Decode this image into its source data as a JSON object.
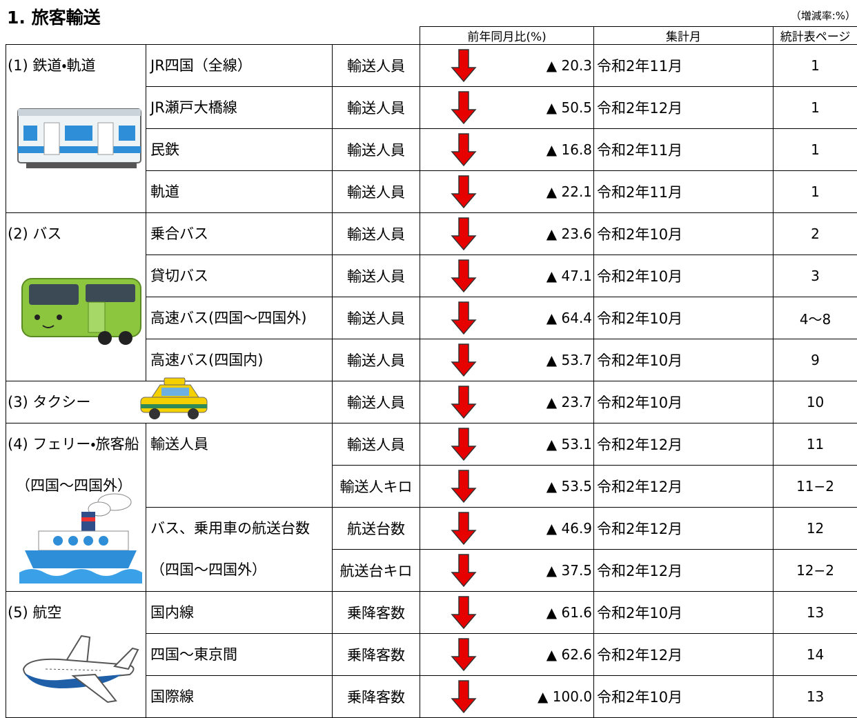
{
  "title": "1. 旅客輸送",
  "unit_note": "（増減率:%）",
  "header": {
    "change": "前年同月比(%)",
    "month": "集計月",
    "page": "統計表ページ"
  },
  "groups": [
    {
      "label": "(1) 鉄道・軌道",
      "items": [
        {
          "label": "JR四国（全線）",
          "rows": [
            {
              "measure": "輸送人員",
              "change": "▲ 20.3",
              "month": "令和2年11月",
              "page": "1"
            }
          ]
        },
        {
          "label": "JR瀬戸大橋線",
          "rows": [
            {
              "measure": "輸送人員",
              "change": "▲ 50.5",
              "month": "令和2年12月",
              "page": "1"
            }
          ]
        },
        {
          "label": "民鉄",
          "rows": [
            {
              "measure": "輸送人員",
              "change": "▲ 16.8",
              "month": "令和2年11月",
              "page": "1"
            }
          ]
        },
        {
          "label": "軌道",
          "rows": [
            {
              "measure": "輸送人員",
              "change": "▲ 22.1",
              "month": "令和2年11月",
              "page": "1"
            }
          ]
        }
      ]
    },
    {
      "label": "(2) バス",
      "items": [
        {
          "label": "乗合バス",
          "rows": [
            {
              "measure": "輸送人員",
              "change": "▲ 23.6",
              "month": "令和2年10月",
              "page": "2"
            }
          ]
        },
        {
          "label": "貸切バス",
          "rows": [
            {
              "measure": "輸送人員",
              "change": "▲ 47.1",
              "month": "令和2年10月",
              "page": "3"
            }
          ]
        },
        {
          "label": "高速バス(四国～四国外)",
          "rows": [
            {
              "measure": "輸送人員",
              "change": "▲ 64.4",
              "month": "令和2年10月",
              "page": "4～8"
            }
          ]
        },
        {
          "label": "高速バス(四国内)",
          "rows": [
            {
              "measure": "輸送人員",
              "change": "▲ 53.7",
              "month": "令和2年10月",
              "page": "9"
            }
          ]
        }
      ]
    },
    {
      "label": "(3) タクシー",
      "items": [
        {
          "rows": [
            {
              "measure": "輸送人員",
              "change": "▲ 23.7",
              "month": "令和2年10月",
              "page": "10"
            }
          ]
        }
      ]
    },
    {
      "label": "(4) フェリー・旅客船",
      "sublabel": "（四国～四国外）",
      "items": [
        {
          "label": "輸送人員",
          "rows": [
            {
              "measure": "輸送人員",
              "change": "▲ 53.1",
              "month": "令和2年12月",
              "page": "11"
            },
            {
              "measure": "輸送人キロ",
              "change": "▲ 53.5",
              "month": "令和2年12月",
              "page": "11−2"
            }
          ]
        },
        {
          "label": "バス、乗用車の航送台数",
          "sublabel": "（四国～四国外）",
          "rows": [
            {
              "measure": "航送台数",
              "change": "▲ 46.9",
              "month": "令和2年12月",
              "page": "12"
            },
            {
              "measure": "航送台キロ",
              "change": "▲ 37.5",
              "month": "令和2年12月",
              "page": "12−2"
            }
          ]
        }
      ]
    },
    {
      "label": "(5) 航空",
      "items": [
        {
          "label": "国内線",
          "rows": [
            {
              "measure": "乗降客数",
              "change": "▲ 61.6",
              "month": "令和2年10月",
              "page": "13"
            }
          ]
        },
        {
          "label": "四国～東京間",
          "rows": [
            {
              "measure": "乗降客数",
              "change": "▲ 62.6",
              "month": "令和2年12月",
              "page": "14"
            }
          ]
        },
        {
          "label": "国際線",
          "rows": [
            {
              "measure": "乗降客数",
              "change": "▲ 100.0",
              "month": "令和2年10月",
              "page": "13"
            }
          ]
        }
      ]
    }
  ]
}
